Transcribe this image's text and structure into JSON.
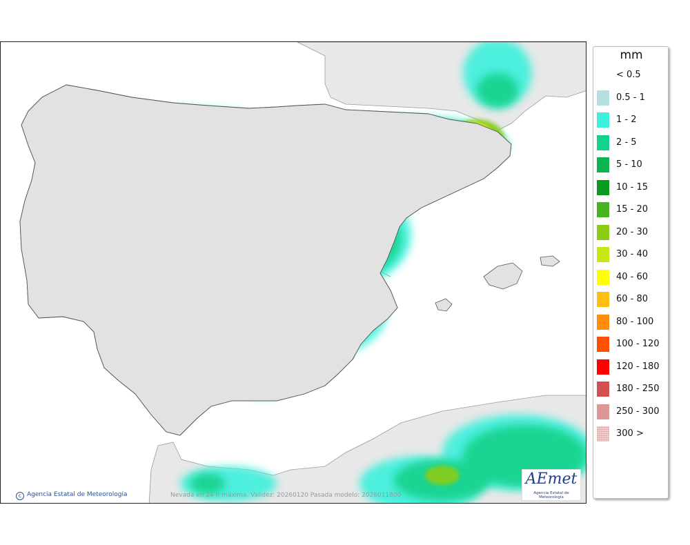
{
  "map": {
    "caption": "Nevada en 24 h máxima. Validez: 20260120 Pasada modelo: 2026011800",
    "credit": "Agencia Estatal de Meteorología",
    "logo_text": "AEmet",
    "logo_subtext": "Agencia Estatal de Meteorología"
  },
  "legend": {
    "title": "mm",
    "items": [
      {
        "label": "< 0.5",
        "color": "#ffffff"
      },
      {
        "label": "0.5 - 1",
        "color": "#b4e0e4"
      },
      {
        "label": "1 - 2",
        "color": "#3cf0dc"
      },
      {
        "label": "2 - 5",
        "color": "#14d28c"
      },
      {
        "label": "5 - 10",
        "color": "#0cb450"
      },
      {
        "label": "10 - 15",
        "color": "#089a1e"
      },
      {
        "label": "15 - 20",
        "color": "#46b41e"
      },
      {
        "label": "20 - 30",
        "color": "#8ccc14"
      },
      {
        "label": "30 - 40",
        "color": "#c8e614"
      },
      {
        "label": "40 - 60",
        "color": "#ffff00"
      },
      {
        "label": "60 - 80",
        "color": "#ffbe14"
      },
      {
        "label": "80 - 100",
        "color": "#ff8c0a"
      },
      {
        "label": "100 - 120",
        "color": "#ff5000"
      },
      {
        "label": "120 - 180",
        "color": "#ff0000"
      },
      {
        "label": "180 - 250",
        "color": "#d25050"
      },
      {
        "label": "250 - 300",
        "color": "#dc9696"
      },
      {
        "label": "300 >",
        "color": "#f5d2d2"
      }
    ]
  }
}
